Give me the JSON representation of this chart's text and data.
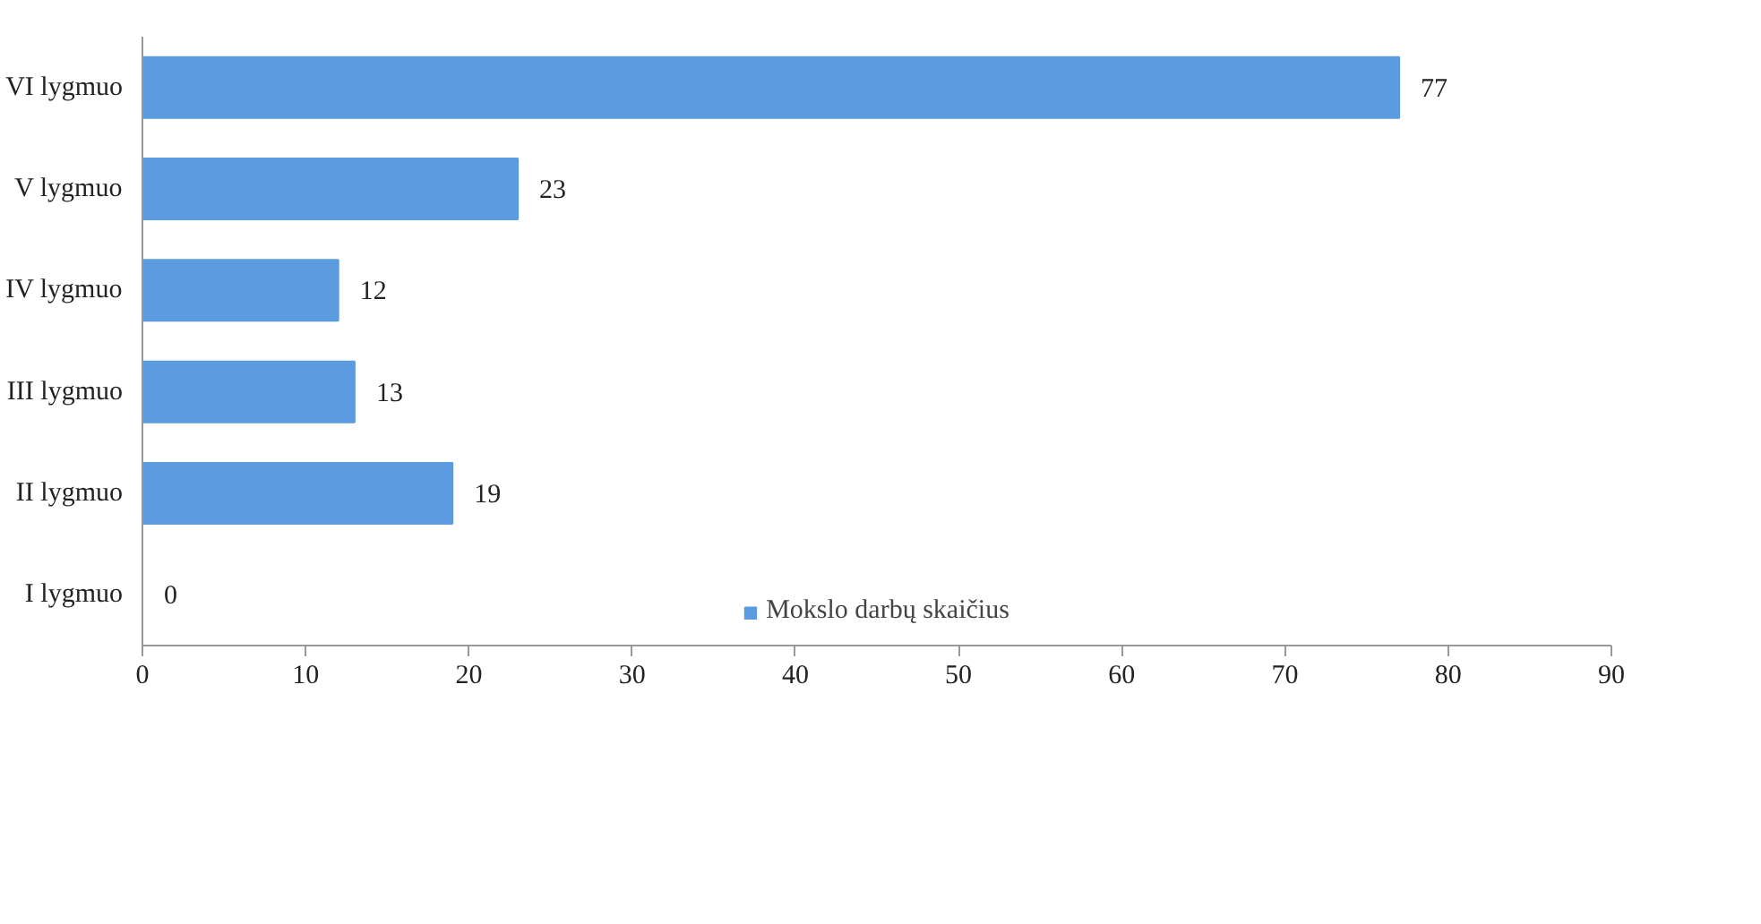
{
  "chart_data": {
    "type": "bar",
    "orientation": "horizontal",
    "categories": [
      "VI lygmuo",
      "V lygmuo",
      "IV lygmuo",
      "III lygmuo",
      "II lygmuo",
      "I lygmuo"
    ],
    "series": [
      {
        "name": "Mokslo darbų skaičius",
        "color": "#5b9be0",
        "values": [
          77,
          23,
          12,
          13,
          19,
          0
        ]
      }
    ],
    "xlim": [
      0,
      90
    ],
    "xticks": [
      0,
      10,
      20,
      30,
      40,
      50,
      60,
      70,
      80,
      90
    ],
    "data_labels": true,
    "grid": false,
    "legend": "bottom"
  }
}
